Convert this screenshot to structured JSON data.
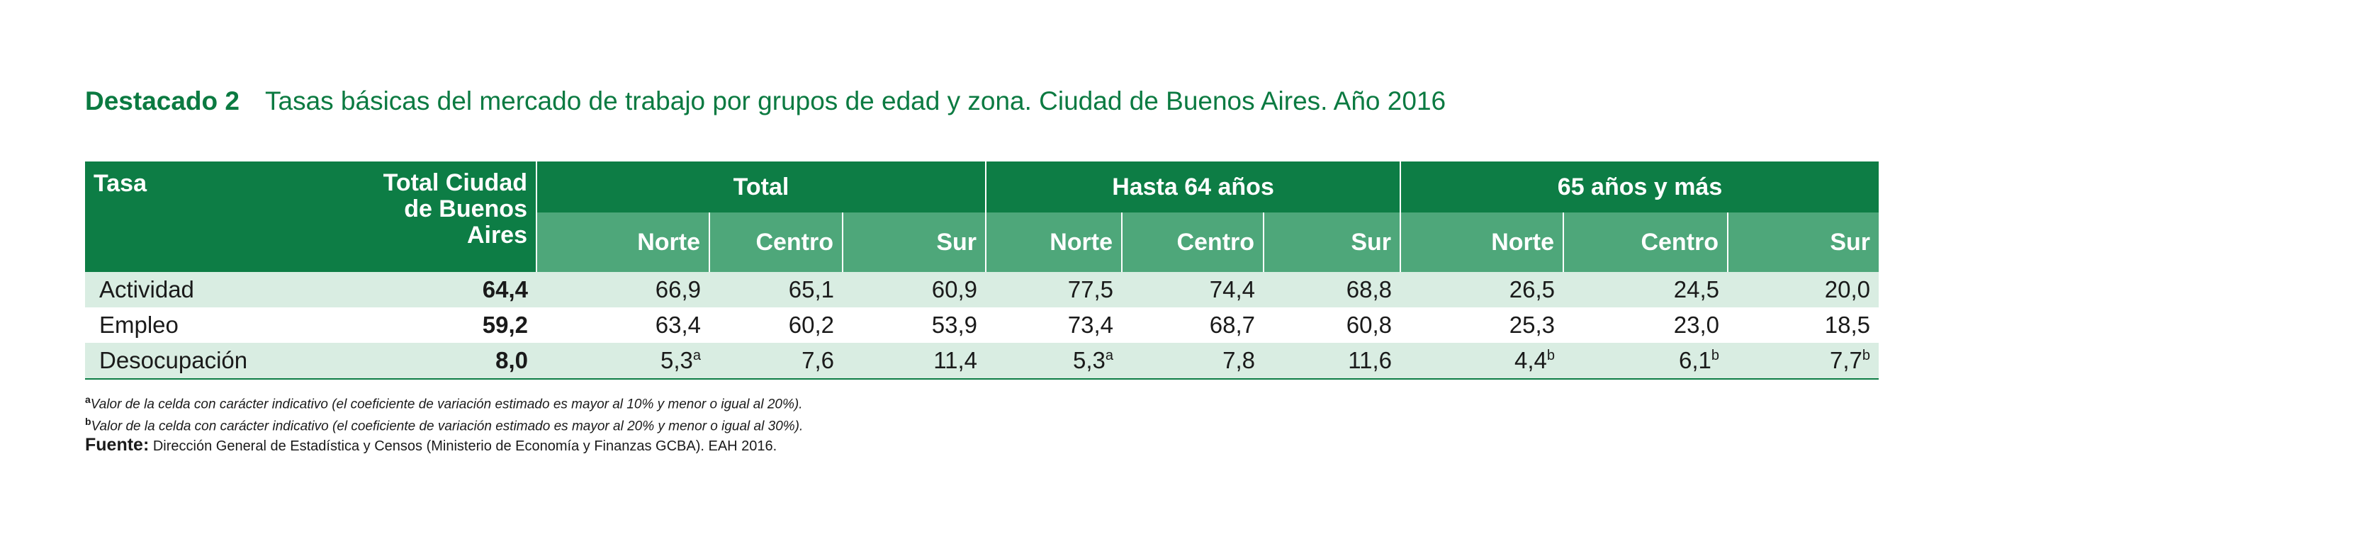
{
  "title": {
    "label": "Destacado 2",
    "text": "Tasas básicas del mercado de trabajo por grupos de edad y zona. Ciudad de Buenos Aires. Año 2016"
  },
  "header": {
    "tasa": "Tasa",
    "total_ciudad": "Total Ciudad de Buenos Aires",
    "groups": [
      "Total",
      "Hasta 64 años",
      "65 años y más"
    ],
    "zones": [
      "Norte",
      "Centro",
      "Sur"
    ]
  },
  "rows": [
    {
      "name": "Actividad",
      "values": [
        "64,4",
        "66,9",
        "65,1",
        "60,9",
        "77,5",
        "74,4",
        "68,8",
        "26,5",
        "24,5",
        "20,0"
      ],
      "marks": [
        "",
        "",
        "",
        "",
        "",
        "",
        "",
        "",
        "",
        ""
      ]
    },
    {
      "name": "Empleo",
      "values": [
        "59,2",
        "63,4",
        "60,2",
        "53,9",
        "73,4",
        "68,7",
        "60,8",
        "25,3",
        "23,0",
        "18,5"
      ],
      "marks": [
        "",
        "",
        "",
        "",
        "",
        "",
        "",
        "",
        "",
        ""
      ]
    },
    {
      "name": "Desocupación",
      "values": [
        "8,0",
        "5,3",
        "7,6",
        "11,4",
        "5,3",
        "7,8",
        "11,6",
        "4,4",
        "6,1",
        "7,7"
      ],
      "marks": [
        "",
        "a",
        "",
        "",
        "a",
        "",
        "",
        "b",
        "b",
        "b"
      ]
    }
  ],
  "notes": {
    "a_mark": "a",
    "a_text": "Valor de la celda con carácter indicativo (el coeficiente de variación estimado es mayor al 10% y menor o igual al 20%).",
    "b_mark": "b",
    "b_text": "Valor de la celda con carácter indicativo (el coeficiente de variación estimado es mayor al 20% y menor o igual al 30%)."
  },
  "fuente": {
    "label": "Fuente:",
    "text": "Dirección General de Estadística y Censos (Ministerio de Economía y Finanzas GCBA). EAH 2016."
  },
  "colors": {
    "accent": "#0d7d45",
    "subheader": "#4ea77a",
    "row_shade": "#d9ede2",
    "title": "#0b7a41"
  }
}
